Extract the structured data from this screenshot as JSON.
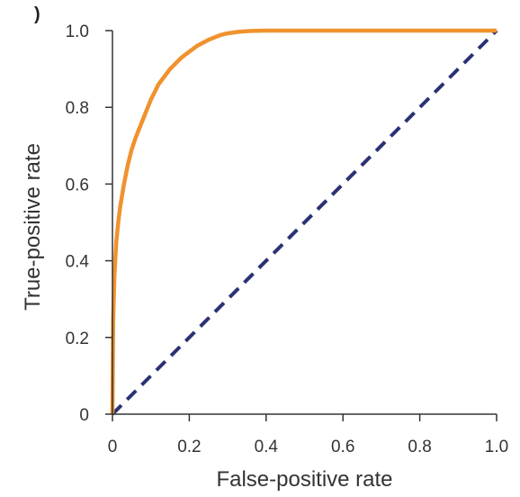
{
  "panel_label": ")",
  "chart_data": {
    "type": "line",
    "title": "",
    "xlabel": "False-positive rate",
    "ylabel": "True-positive rate",
    "xlim": [
      0,
      1
    ],
    "ylim": [
      0,
      1
    ],
    "x_ticks": [
      0,
      0.2,
      0.4,
      0.6,
      0.8,
      1.0
    ],
    "x_tick_labels": [
      "0",
      "0.2",
      "0.4",
      "0.6",
      "0.8",
      "1.0"
    ],
    "y_ticks": [
      0,
      0.2,
      0.4,
      0.6,
      0.8,
      1.0
    ],
    "y_tick_labels": [
      "0",
      "0.2",
      "0.4",
      "0.6",
      "0.8",
      "1.0"
    ],
    "grid": false,
    "legend": "none",
    "series": [
      {
        "color": "#F0922E",
        "style": "solid",
        "x": [
          0,
          0.002,
          0.005,
          0.01,
          0.015,
          0.02,
          0.03,
          0.04,
          0.05,
          0.06,
          0.08,
          0.1,
          0.12,
          0.15,
          0.18,
          0.2,
          0.22,
          0.25,
          0.28,
          0.3,
          0.33,
          0.36,
          0.4,
          0.45,
          0.5,
          0.6,
          0.7,
          0.8,
          0.9,
          1.0
        ],
        "y": [
          0,
          0.25,
          0.36,
          0.45,
          0.5,
          0.54,
          0.6,
          0.65,
          0.69,
          0.72,
          0.77,
          0.82,
          0.86,
          0.9,
          0.93,
          0.945,
          0.96,
          0.976,
          0.988,
          0.993,
          0.997,
          0.999,
          1.0,
          1.0,
          1.0,
          1.0,
          1.0,
          1.0,
          1.0,
          1.0
        ]
      },
      {
        "color": "#2A3174",
        "style": "dashed",
        "x": [
          0,
          1
        ],
        "y": [
          0,
          1
        ]
      }
    ]
  }
}
